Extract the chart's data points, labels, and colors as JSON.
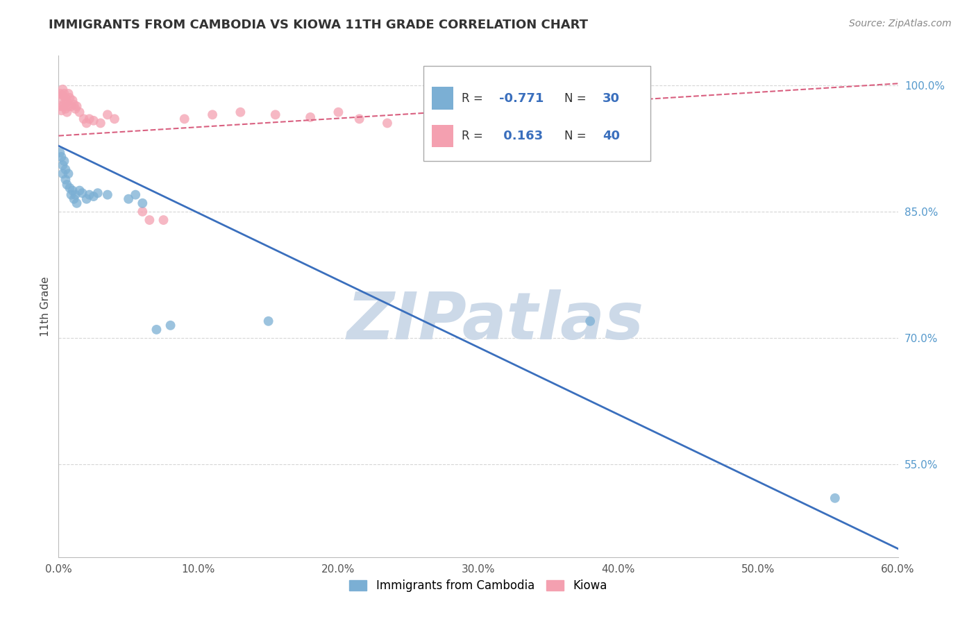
{
  "title": "IMMIGRANTS FROM CAMBODIA VS KIOWA 11TH GRADE CORRELATION CHART",
  "source": "Source: ZipAtlas.com",
  "ylabel": "11th Grade",
  "watermark": "ZIPatlas",
  "xlim": [
    0.0,
    0.6
  ],
  "ylim": [
    0.44,
    1.035
  ],
  "xticks": [
    0.0,
    0.1,
    0.2,
    0.3,
    0.4,
    0.5,
    0.6
  ],
  "xticklabels": [
    "0.0%",
    "10.0%",
    "20.0%",
    "30.0%",
    "40.0%",
    "50.0%",
    "60.0%"
  ],
  "yticks": [
    0.55,
    0.7,
    0.85,
    1.0
  ],
  "yticklabels": [
    "55.0%",
    "70.0%",
    "85.0%",
    "100.0%"
  ],
  "blue_color": "#7bafd4",
  "pink_color": "#f4a0b0",
  "blue_line_color": "#3a6fbd",
  "pink_line_color": "#d96080",
  "legend_label_blue": "Immigrants from Cambodia",
  "legend_label_pink": "Kiowa",
  "blue_scatter_x": [
    0.001,
    0.002,
    0.003,
    0.003,
    0.004,
    0.005,
    0.005,
    0.006,
    0.007,
    0.008,
    0.009,
    0.01,
    0.011,
    0.012,
    0.013,
    0.015,
    0.017,
    0.02,
    0.022,
    0.025,
    0.028,
    0.035,
    0.05,
    0.055,
    0.06,
    0.07,
    0.08,
    0.15,
    0.38,
    0.555
  ],
  "blue_scatter_y": [
    0.92,
    0.915,
    0.905,
    0.895,
    0.91,
    0.9,
    0.888,
    0.882,
    0.895,
    0.878,
    0.87,
    0.875,
    0.865,
    0.87,
    0.86,
    0.875,
    0.872,
    0.865,
    0.87,
    0.868,
    0.872,
    0.87,
    0.865,
    0.87,
    0.86,
    0.71,
    0.715,
    0.72,
    0.72,
    0.51
  ],
  "pink_scatter_x": [
    0.001,
    0.001,
    0.002,
    0.002,
    0.003,
    0.003,
    0.003,
    0.004,
    0.004,
    0.005,
    0.005,
    0.006,
    0.006,
    0.007,
    0.007,
    0.008,
    0.009,
    0.01,
    0.011,
    0.012,
    0.013,
    0.015,
    0.018,
    0.02,
    0.022,
    0.025,
    0.03,
    0.035,
    0.04,
    0.06,
    0.065,
    0.075,
    0.09,
    0.11,
    0.13,
    0.155,
    0.18,
    0.2,
    0.215,
    0.235
  ],
  "pink_scatter_y": [
    0.99,
    0.975,
    0.985,
    0.97,
    0.995,
    0.988,
    0.975,
    0.99,
    0.978,
    0.985,
    0.972,
    0.98,
    0.968,
    0.99,
    0.975,
    0.985,
    0.975,
    0.982,
    0.977,
    0.972,
    0.975,
    0.968,
    0.96,
    0.955,
    0.96,
    0.958,
    0.955,
    0.965,
    0.96,
    0.85,
    0.84,
    0.84,
    0.96,
    0.965,
    0.968,
    0.965,
    0.962,
    0.968,
    0.96,
    0.955
  ],
  "blue_line_x": [
    0.0,
    0.6
  ],
  "blue_line_y": [
    0.928,
    0.45
  ],
  "pink_line_x": [
    0.0,
    0.6
  ],
  "pink_line_y": [
    0.94,
    1.002
  ],
  "grid_color": "#cccccc",
  "background_color": "#ffffff",
  "title_color": "#333333",
  "title_fontsize": 13,
  "source_fontsize": 10,
  "watermark_color": "#ccd9e8",
  "watermark_fontsize": 68,
  "marker_size": 100,
  "legend_R_color": "#3a6fbd",
  "legend_N_color": "#3a6fbd"
}
